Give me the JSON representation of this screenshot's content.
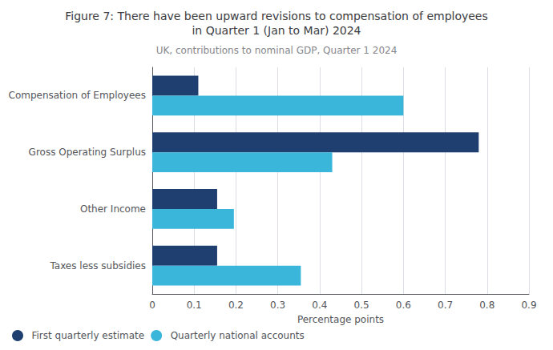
{
  "chart_data": {
    "type": "bar",
    "orientation": "horizontal",
    "title": "Figure 7: There have been upward revisions to compensation of employees\nin Quarter 1 (Jan to Mar) 2024",
    "subtitle": "UK, contributions to nominal GDP, Quarter 1 2024",
    "categories": [
      "Compensation of Employees",
      "Gross Operating Surplus",
      "Other Income",
      "Taxes less subsidies"
    ],
    "series": [
      {
        "name": "First quarterly estimate",
        "color": "#1e3f6f",
        "values": [
          0.11,
          0.78,
          0.155,
          0.155
        ]
      },
      {
        "name": "Quarterly national accounts",
        "color": "#3ab6db",
        "values": [
          0.6,
          0.43,
          0.195,
          0.355
        ]
      }
    ],
    "xlabel": "Percentage points",
    "xlim": [
      0,
      0.9
    ],
    "xticks": [
      0,
      0.1,
      0.2,
      0.3,
      0.4,
      0.5,
      0.6,
      0.7,
      0.8,
      0.9
    ],
    "grid": true,
    "legend": "lower left"
  }
}
